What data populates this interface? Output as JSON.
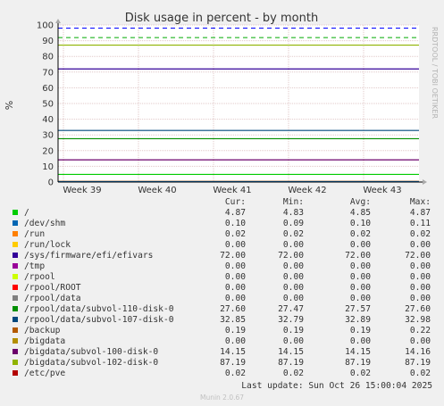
{
  "chart_data": {
    "type": "line",
    "title": "Disk usage in percent - by month",
    "ylabel": "%",
    "side_label": "RRDTOOL / TOBI OETIKER",
    "ylim": [
      0,
      100
    ],
    "y_ticks": [
      0,
      10,
      20,
      30,
      40,
      50,
      60,
      70,
      80,
      90,
      100
    ],
    "x_ticks": [
      "Week 39",
      "Week 40",
      "Week 41",
      "Week 42",
      "Week 43"
    ],
    "warning_levels": [
      {
        "value": 92,
        "color": "#00aa00"
      },
      {
        "value": 98,
        "color": "#0000ff"
      }
    ],
    "columns": [
      "Cur:",
      "Min:",
      "Avg:",
      "Max:"
    ],
    "series": [
      {
        "name": "/",
        "color": "#00cc00",
        "cur": "4.87",
        "min": "4.83",
        "avg": "4.85",
        "max": "4.87"
      },
      {
        "name": "/dev/shm",
        "color": "#0066b3",
        "cur": "0.10",
        "min": "0.09",
        "avg": "0.10",
        "max": "0.11"
      },
      {
        "name": "/run",
        "color": "#ff8000",
        "cur": "0.02",
        "min": "0.02",
        "avg": "0.02",
        "max": "0.02"
      },
      {
        "name": "/run/lock",
        "color": "#ffcc00",
        "cur": "0.00",
        "min": "0.00",
        "avg": "0.00",
        "max": "0.00"
      },
      {
        "name": "/sys/firmware/efi/efivars",
        "color": "#330099",
        "cur": "72.00",
        "min": "72.00",
        "avg": "72.00",
        "max": "72.00"
      },
      {
        "name": "/tmp",
        "color": "#990099",
        "cur": "0.00",
        "min": "0.00",
        "avg": "0.00",
        "max": "0.00"
      },
      {
        "name": "/rpool",
        "color": "#ccff00",
        "cur": "0.00",
        "min": "0.00",
        "avg": "0.00",
        "max": "0.00"
      },
      {
        "name": "/rpool/ROOT",
        "color": "#ff0000",
        "cur": "0.00",
        "min": "0.00",
        "avg": "0.00",
        "max": "0.00"
      },
      {
        "name": "/rpool/data",
        "color": "#808080",
        "cur": "0.00",
        "min": "0.00",
        "avg": "0.00",
        "max": "0.00"
      },
      {
        "name": "/rpool/data/subvol-110-disk-0",
        "color": "#008f00",
        "cur": "27.60",
        "min": "27.47",
        "avg": "27.57",
        "max": "27.60"
      },
      {
        "name": "/rpool/data/subvol-107-disk-0",
        "color": "#00487d",
        "cur": "32.85",
        "min": "32.79",
        "avg": "32.89",
        "max": "32.98"
      },
      {
        "name": "/backup",
        "color": "#b35a00",
        "cur": "0.19",
        "min": "0.19",
        "avg": "0.19",
        "max": "0.22"
      },
      {
        "name": "/bigdata",
        "color": "#b38f00",
        "cur": "0.00",
        "min": "0.00",
        "avg": "0.00",
        "max": "0.00"
      },
      {
        "name": "/bigdata/subvol-100-disk-0",
        "color": "#6b006b",
        "cur": "14.15",
        "min": "14.15",
        "avg": "14.15",
        "max": "14.16"
      },
      {
        "name": "/bigdata/subvol-102-disk-0",
        "color": "#8fb300",
        "cur": "87.19",
        "min": "87.19",
        "avg": "87.19",
        "max": "87.19"
      },
      {
        "name": "/etc/pve",
        "color": "#b30000",
        "cur": "0.02",
        "min": "0.02",
        "avg": "0.02",
        "max": "0.02"
      }
    ]
  },
  "last_update": "Last update: Sun Oct 26 15:00:04 2025",
  "footer": "Munin 2.0.67"
}
